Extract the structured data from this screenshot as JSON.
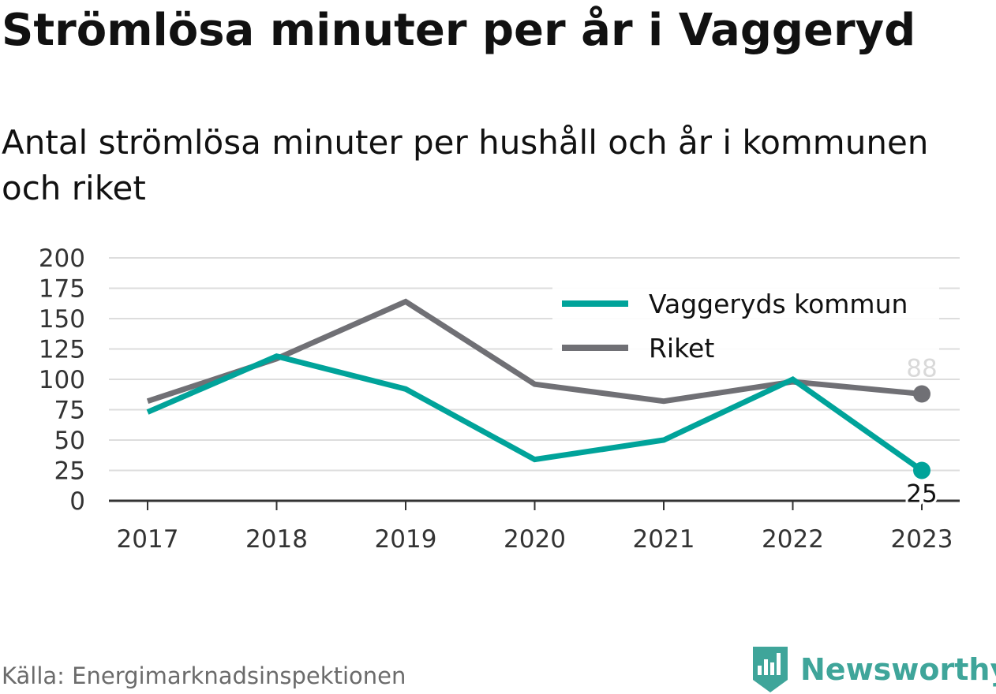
{
  "title": "Strömlösa minuter per år i Vaggeryd",
  "subtitle": "Antal strömlösa minuter per hushåll och år i kommunen och riket",
  "source": "Källa: Energimarknadsinspektionen",
  "brand": "Newsworthy",
  "colors": {
    "kommun": "#00a39a",
    "riket": "#707075",
    "grid": "#dddddd",
    "axis": "#333333",
    "brand": "#3fa59a"
  },
  "chart_data": {
    "type": "line",
    "x": [
      "2017",
      "2018",
      "2019",
      "2020",
      "2021",
      "2022",
      "2023"
    ],
    "ylim": [
      0,
      200
    ],
    "yticks": [
      0,
      25,
      50,
      75,
      100,
      125,
      150,
      175,
      200
    ],
    "grid": true,
    "legend_position": "top-right",
    "series": [
      {
        "name": "Vaggeryds kommun",
        "values": [
          73,
          119,
          92,
          34,
          50,
          100,
          25
        ],
        "end_label": "25"
      },
      {
        "name": "Riket",
        "values": [
          82,
          117,
          164,
          96,
          82,
          98,
          88
        ],
        "end_label": "88"
      }
    ]
  }
}
